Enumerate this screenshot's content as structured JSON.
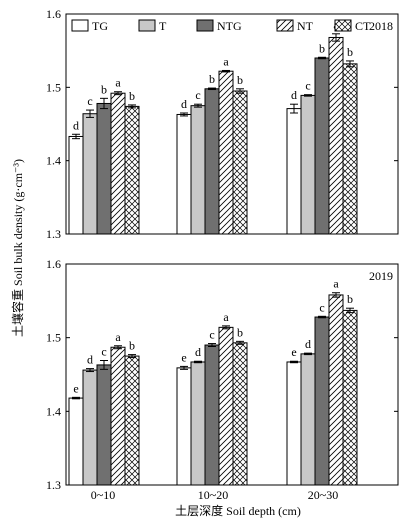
{
  "chart_data": {
    "type": "bar",
    "ylabel": "土壤容重 Soil bulk density (g·cm⁻³)",
    "xlabel": "土层深度 Soil depth (cm)",
    "categories": [
      "0~10",
      "10~20",
      "20~30"
    ],
    "legend": {
      "placement": "top-left",
      "entries": [
        "TG",
        "T",
        "NTG",
        "NT",
        "CT"
      ]
    },
    "series_styles": [
      {
        "fill": "#ffffff",
        "pattern": "none"
      },
      {
        "fill": "#c8c8c8",
        "pattern": "none"
      },
      {
        "fill": "#707070",
        "pattern": "none"
      },
      {
        "fill": "#ffffff",
        "pattern": "diagonal"
      },
      {
        "fill": "#ffffff",
        "pattern": "crosshatch"
      }
    ],
    "y_ticks": [
      "1.3",
      "1.4",
      "1.5",
      "1.6"
    ],
    "ylim": [
      1.3,
      1.6
    ],
    "grid": false,
    "panels": [
      {
        "year": "2018",
        "series": [
          {
            "name": "TG",
            "values": [
              1.433,
              1.463,
              1.471
            ],
            "errors": [
              0.003,
              0.002,
              0.006
            ],
            "letters": [
              "d",
              "d",
              "d"
            ]
          },
          {
            "name": "T",
            "values": [
              1.464,
              1.475,
              1.489
            ],
            "errors": [
              0.005,
              0.002,
              0.001
            ],
            "letters": [
              "c",
              "c",
              "c"
            ]
          },
          {
            "name": "NTG",
            "values": [
              1.478,
              1.498,
              1.54
            ],
            "errors": [
              0.007,
              0.001,
              0.001
            ],
            "letters": [
              "b",
              "b",
              "b"
            ]
          },
          {
            "name": "NT",
            "values": [
              1.492,
              1.522,
              1.568
            ],
            "errors": [
              0.002,
              0.001,
              0.005
            ],
            "letters": [
              "a",
              "a",
              "a"
            ]
          },
          {
            "name": "CT",
            "values": [
              1.474,
              1.495,
              1.532
            ],
            "errors": [
              0.002,
              0.003,
              0.004
            ],
            "letters": [
              "b",
              "b",
              "b"
            ]
          }
        ]
      },
      {
        "year": "2019",
        "series": [
          {
            "name": "TG",
            "values": [
              1.418,
              1.459,
              1.467
            ],
            "errors": [
              0.001,
              0.002,
              0.001
            ],
            "letters": [
              "e",
              "e",
              "e"
            ]
          },
          {
            "name": "T",
            "values": [
              1.456,
              1.467,
              1.478
            ],
            "errors": [
              0.002,
              0.001,
              0.001
            ],
            "letters": [
              "d",
              "d",
              "d"
            ]
          },
          {
            "name": "NTG",
            "values": [
              1.463,
              1.49,
              1.528
            ],
            "errors": [
              0.006,
              0.002,
              0.001
            ],
            "letters": [
              "c",
              "c",
              "c"
            ]
          },
          {
            "name": "NT",
            "values": [
              1.487,
              1.514,
              1.558
            ],
            "errors": [
              0.002,
              0.002,
              0.003
            ],
            "letters": [
              "a",
              "a",
              "a"
            ]
          },
          {
            "name": "CT",
            "values": [
              1.475,
              1.493,
              1.537
            ],
            "errors": [
              0.002,
              0.002,
              0.003
            ],
            "letters": [
              "b",
              "b",
              "b"
            ]
          }
        ]
      }
    ]
  }
}
